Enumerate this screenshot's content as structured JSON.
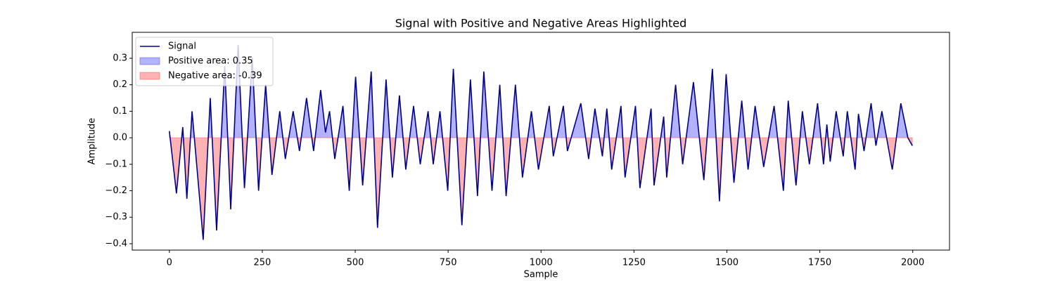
{
  "chart_data": {
    "type": "line",
    "title": "Signal with Positive and Negative Areas Highlighted",
    "x_label": "Sample",
    "y_label": "Amplitude",
    "x": [
      0,
      19,
      36,
      47,
      61,
      91,
      110,
      127,
      149,
      165,
      185,
      202,
      223,
      240,
      259,
      276,
      297,
      312,
      333,
      350,
      369,
      388,
      407,
      420,
      431,
      445,
      467,
      484,
      501,
      520,
      543,
      560,
      583,
      600,
      619,
      636,
      657,
      675,
      696,
      710,
      728,
      749,
      764,
      787,
      810,
      829,
      846,
      868,
      889,
      906,
      931,
      950,
      974,
      993,
      1022,
      1033,
      1060,
      1071,
      1107,
      1128,
      1145,
      1165,
      1177,
      1190,
      1215,
      1226,
      1254,
      1266,
      1296,
      1304,
      1330,
      1338,
      1362,
      1381,
      1410,
      1438,
      1461,
      1480,
      1498,
      1519,
      1540,
      1557,
      1576,
      1599,
      1627,
      1652,
      1665,
      1686,
      1703,
      1722,
      1744,
      1760,
      1769,
      1778,
      1794,
      1813,
      1824,
      1845,
      1854,
      1869,
      1888,
      1901,
      1917,
      1945,
      1968,
      1987,
      1999
    ],
    "series": [
      {
        "name": "Signal",
        "color": "#00008b",
        "values": [
          0.025,
          -0.21,
          0.04,
          -0.23,
          0.1,
          -0.385,
          0.15,
          -0.35,
          0.27,
          -0.27,
          0.35,
          -0.19,
          0.3,
          -0.2,
          0.2,
          -0.14,
          0.1,
          -0.08,
          0.1,
          -0.05,
          0.15,
          -0.05,
          0.18,
          0.02,
          0.1,
          -0.08,
          0.12,
          -0.2,
          0.23,
          -0.18,
          0.25,
          -0.34,
          0.22,
          -0.15,
          0.16,
          -0.12,
          0.12,
          -0.1,
          0.1,
          -0.1,
          0.1,
          -0.2,
          0.26,
          -0.33,
          0.22,
          -0.22,
          0.25,
          -0.2,
          0.2,
          -0.22,
          0.2,
          -0.15,
          0.1,
          -0.12,
          0.12,
          -0.07,
          0.12,
          -0.05,
          0.13,
          -0.08,
          0.11,
          -0.07,
          0.11,
          -0.12,
          0.12,
          -0.15,
          0.12,
          -0.19,
          0.11,
          -0.18,
          0.08,
          -0.15,
          0.2,
          -0.1,
          0.21,
          -0.16,
          0.26,
          -0.24,
          0.24,
          -0.17,
          0.14,
          -0.12,
          0.12,
          -0.11,
          0.12,
          -0.2,
          0.14,
          -0.18,
          0.1,
          -0.1,
          0.13,
          -0.1,
          0.05,
          -0.09,
          0.1,
          -0.07,
          0.1,
          -0.12,
          0.09,
          -0.05,
          0.13,
          -0.03,
          0.1,
          -0.12,
          0.13,
          0.0,
          -0.03
        ]
      }
    ],
    "areas": [
      {
        "name": "Positive area: 0.35",
        "color": "#0000ff",
        "side": "positive"
      },
      {
        "name": "Negative area: -0.39",
        "color": "#ff0000",
        "side": "negative"
      }
    ],
    "xlim": [
      -99.95,
      2098.95
    ],
    "xticks": [
      0,
      250,
      500,
      750,
      1000,
      1250,
      1500,
      1750,
      2000
    ],
    "ylim": [
      -0.424,
      0.398
    ],
    "yticks": [
      {
        "value": -0.4,
        "label": "−0.4"
      },
      {
        "value": -0.3,
        "label": "−0.3"
      },
      {
        "value": -0.2,
        "label": "−0.2"
      },
      {
        "value": -0.1,
        "label": "−0.1"
      },
      {
        "value": 0,
        "label": "0.0"
      },
      0.1,
      0.2,
      0.3
    ],
    "legend": "upper left",
    "grid": false
  }
}
